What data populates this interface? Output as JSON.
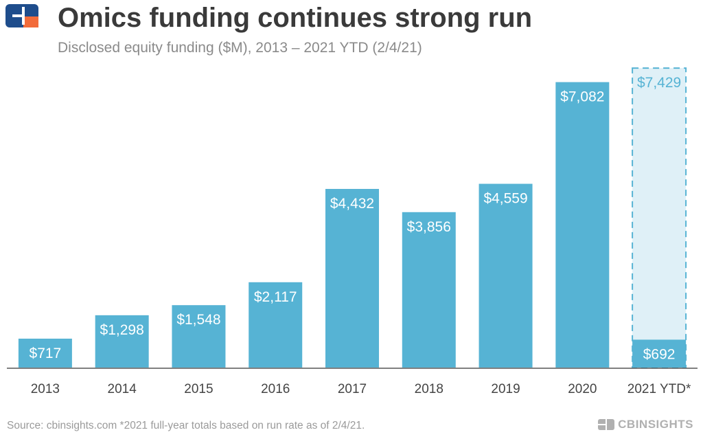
{
  "header": {
    "title": "Omics funding continues strong run",
    "subtitle": "Disclosed equity funding ($M), 2013 – 2021 YTD (2/4/21)"
  },
  "footer": {
    "source": "Source: cbinsights.com  *2021 full-year totals based on run rate as of 2/4/21.",
    "brand": "CBINSIGHTS"
  },
  "colors": {
    "bar": "#56b3d4",
    "projected_fill": "#dff0f7",
    "projected_border": "#56b3d4",
    "axis": "#555555",
    "logo_blue": "#1e4d8c",
    "logo_orange": "#f26b3a"
  },
  "chart_data": {
    "type": "bar",
    "categories": [
      "2013",
      "2014",
      "2015",
      "2016",
      "2017",
      "2018",
      "2019",
      "2020",
      "2021 YTD*"
    ],
    "values": [
      717,
      1298,
      1548,
      2117,
      4432,
      3856,
      4559,
      7082,
      692
    ],
    "labels": [
      "$717",
      "$1,298",
      "$1,548",
      "$2,117",
      "$4,432",
      "$3,856",
      "$4,559",
      "$7,082",
      "$692"
    ],
    "projection": {
      "category": "2021 YTD*",
      "value": 7429,
      "label": "$7,429",
      "style": "dashed"
    },
    "title": "Omics funding continues strong run",
    "subtitle": "Disclosed equity funding ($M), 2013 – 2021 YTD (2/4/21)",
    "xlabel": "",
    "ylabel": "",
    "ylim": [
      0,
      7500
    ],
    "grid": false,
    "legend": "none"
  }
}
